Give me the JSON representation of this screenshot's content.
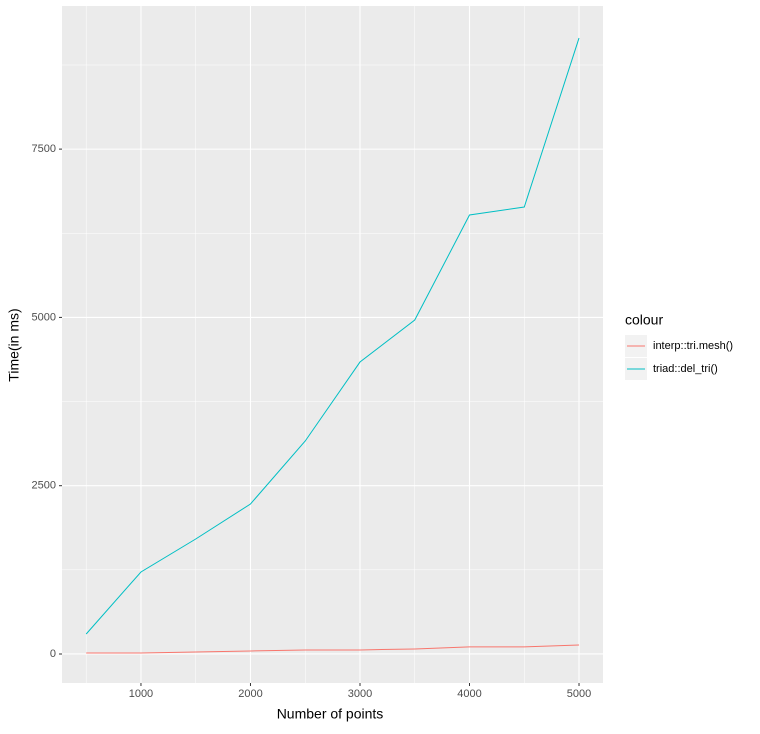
{
  "chart_data": {
    "type": "line",
    "x": [
      500,
      1000,
      1500,
      2000,
      2500,
      3000,
      3500,
      4000,
      4500,
      5000
    ],
    "series": [
      {
        "name": "interp::tri.mesh()",
        "color": "#f8766d",
        "values": [
          15,
          15,
          30,
          45,
          60,
          60,
          75,
          105,
          105,
          134
        ]
      },
      {
        "name": "triad::del_tri()",
        "color": "#00bfc4",
        "values": [
          297,
          1218,
          1708,
          2228,
          3164,
          4337,
          4961,
          6521,
          6640,
          9150
        ]
      }
    ],
    "xlabel": "Number of points",
    "ylabel": "Time(in ms)",
    "legend_title": "colour",
    "xlim": [
      279,
      5219
    ],
    "ylim": [
      -431,
      9626
    ],
    "xticks": [
      1000,
      2000,
      3000,
      4000,
      5000
    ],
    "yticks": [
      0,
      2500,
      5000,
      7500
    ],
    "grid": true,
    "legend": "right"
  }
}
